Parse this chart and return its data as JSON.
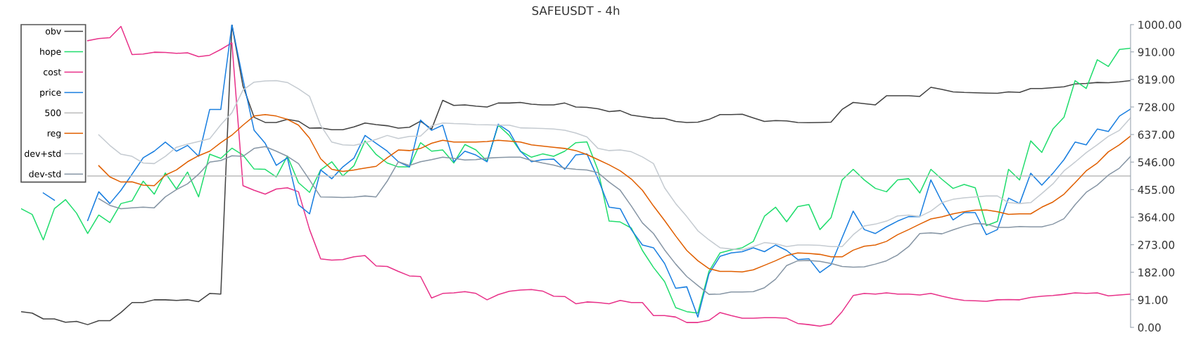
{
  "chart_data": {
    "type": "line",
    "title": "SAFEUSDT - 4h",
    "categories": [
      null,
      null,
      null,
      null,
      null,
      null,
      null,
      null,
      null,
      null,
      null,
      null,
      null,
      null,
      null,
      null,
      null,
      null,
      null,
      null,
      null,
      null,
      null,
      null,
      null,
      null,
      null,
      null,
      null,
      null,
      null,
      null,
      null,
      null,
      null,
      null,
      null,
      null,
      null,
      null,
      null,
      null,
      null,
      null,
      null,
      null,
      null,
      null,
      null,
      null,
      null,
      null,
      null,
      null,
      null,
      null,
      null,
      null,
      null,
      null,
      null,
      null,
      null,
      null,
      null,
      null,
      null,
      null,
      null,
      null,
      null,
      null,
      null,
      null,
      null,
      null,
      null,
      null,
      null,
      null,
      null,
      null,
      null,
      null,
      null,
      null,
      null,
      null,
      null,
      null,
      null,
      null,
      null,
      null,
      null,
      null,
      null,
      null,
      null,
      null,
      null
    ],
    "series": [
      {
        "name": "obv",
        "color": "#444444",
        "values": [
          52,
          47,
          28,
          28,
          17,
          20,
          9,
          22,
          22,
          49,
          82,
          82,
          91,
          91,
          89,
          91,
          85,
          112,
          110,
          1000,
          797,
          694,
          677,
          677,
          687,
          681,
          658,
          659,
          653,
          653,
          662,
          675,
          670,
          666,
          658,
          661,
          681,
          655,
          750,
          733,
          735,
          731,
          728,
          741,
          741,
          743,
          737,
          735,
          735,
          741,
          728,
          727,
          722,
          713,
          716,
          701,
          696,
          691,
          690,
          680,
          677,
          678,
          687,
          703,
          703,
          704,
          692,
          680,
          683,
          682,
          677,
          676,
          677,
          678,
          720,
          743,
          739,
          735,
          765,
          765,
          765,
          763,
          793,
          786,
          778,
          776,
          775,
          774,
          773,
          778,
          776,
          789,
          789,
          792,
          795,
          804,
          806,
          809,
          808,
          811,
          815
        ]
      },
      {
        "name": "hope",
        "color": "#22dd6e",
        "values": [
          392,
          373,
          289,
          392,
          422,
          377,
          310,
          371,
          346,
          409,
          418,
          483,
          440,
          510,
          457,
          513,
          431,
          572,
          558,
          592,
          569,
          523,
          522,
          497,
          566,
          478,
          446,
          520,
          547,
          500,
          534,
          616,
          571,
          543,
          530,
          530,
          610,
          582,
          586,
          543,
          604,
          586,
          549,
          668,
          634,
          582,
          562,
          573,
          565,
          582,
          610,
          613,
          519,
          351,
          348,
          328,
          254,
          198,
          151,
          65,
          52,
          47,
          185,
          246,
          256,
          263,
          284,
          367,
          397,
          349,
          399,
          406,
          323,
          362,
          487,
          522,
          487,
          459,
          448,
          487,
          491,
          444,
          522,
          489,
          459,
          472,
          461,
          336,
          350,
          522,
          487,
          616,
          578,
          655,
          694,
          815,
          789,
          884,
          862,
          918,
          922
        ]
      },
      {
        "name": "cost",
        "color": "#e8338a",
        "values": [
          null,
          null,
          null,
          null,
          null,
          null,
          947,
          954,
          957,
          994,
          901,
          903,
          909,
          908,
          905,
          907,
          894,
          899,
          918,
          940,
          468,
          453,
          440,
          457,
          461,
          448,
          323,
          226,
          222,
          224,
          233,
          237,
          203,
          201,
          185,
          170,
          168,
          97,
          112,
          114,
          118,
          112,
          91,
          108,
          119,
          123,
          125,
          120,
          103,
          102,
          78,
          84,
          82,
          78,
          89,
          82,
          82,
          39,
          39,
          34,
          16,
          16,
          23,
          49,
          39,
          30,
          30,
          32,
          32,
          30,
          13,
          9,
          4,
          11,
          52,
          105,
          112,
          110,
          114,
          110,
          110,
          107,
          112,
          103,
          95,
          89,
          88,
          86,
          91,
          92,
          91,
          99,
          103,
          105,
          109,
          114,
          112,
          114,
          104,
          107,
          110
        ]
      },
      {
        "name": "price",
        "color": "#1a7fe0",
        "values": [
          null,
          null,
          444,
          420,
          null,
          null,
          353,
          448,
          409,
          453,
          506,
          560,
          582,
          612,
          582,
          601,
          565,
          720,
          720,
          1000,
          819,
          651,
          608,
          535,
          560,
          405,
          375,
          520,
          491,
          530,
          559,
          634,
          608,
          582,
          547,
          530,
          685,
          651,
          668,
          547,
          582,
          569,
          547,
          671,
          647,
          582,
          547,
          554,
          556,
          522,
          570,
          573,
          491,
          397,
          392,
          323,
          272,
          263,
          211,
          129,
          134,
          34,
          177,
          235,
          246,
          250,
          263,
          250,
          272,
          254,
          224,
          227,
          181,
          207,
          296,
          384,
          323,
          310,
          332,
          351,
          366,
          366,
          487,
          414,
          355,
          379,
          379,
          306,
          323,
          427,
          409,
          509,
          470,
          509,
          554,
          612,
          603,
          655,
          647,
          698,
          721
        ]
      },
      {
        "name": "500",
        "color": "#bbbbbb",
        "values": [
          null,
          null,
          null,
          null,
          null,
          null,
          500,
          500,
          500,
          500,
          500,
          500,
          500,
          500,
          500,
          500,
          500,
          500,
          500,
          500,
          500,
          500,
          500,
          500,
          500,
          500,
          500,
          500,
          500,
          500,
          500,
          500,
          500,
          500,
          500,
          500,
          500,
          500,
          500,
          500,
          500,
          500,
          500,
          500,
          500,
          500,
          500,
          500,
          500,
          500,
          500,
          500,
          500,
          500,
          500,
          500,
          500,
          500,
          500,
          500,
          500,
          500,
          500,
          500,
          500,
          500,
          500,
          500,
          500,
          500,
          500,
          500,
          500,
          500,
          500,
          500,
          500,
          500,
          500,
          500,
          500,
          500,
          500,
          500,
          500,
          500,
          500,
          500,
          500,
          500,
          500,
          500,
          500,
          500,
          500,
          500,
          500,
          500,
          500,
          500,
          500
        ]
      },
      {
        "name": "reg",
        "color": "#e05f00",
        "values": [
          null,
          null,
          null,
          null,
          null,
          null,
          null,
          534,
          497,
          480,
          481,
          470,
          468,
          503,
          520,
          547,
          567,
          582,
          610,
          635,
          668,
          698,
          703,
          698,
          687,
          668,
          625,
          557,
          522,
          515,
          520,
          526,
          532,
          560,
          586,
          584,
          591,
          608,
          618,
          612,
          612,
          612,
          614,
          618,
          615,
          612,
          603,
          599,
          595,
          591,
          584,
          571,
          554,
          537,
          517,
          490,
          453,
          401,
          353,
          302,
          254,
          220,
          194,
          185,
          185,
          183,
          190,
          205,
          220,
          237,
          246,
          244,
          241,
          233,
          233,
          255,
          268,
          272,
          284,
          306,
          323,
          341,
          358,
          365,
          375,
          382,
          387,
          388,
          382,
          373,
          375,
          375,
          397,
          414,
          440,
          478,
          517,
          543,
          580,
          603,
          632
        ]
      },
      {
        "name": "dev+std",
        "color": "#c5cbd1",
        "values": [
          null,
          null,
          null,
          null,
          null,
          null,
          null,
          636,
          601,
          572,
          565,
          543,
          541,
          565,
          595,
          605,
          614,
          623,
          669,
          709,
          784,
          810,
          814,
          815,
          809,
          788,
          763,
          667,
          612,
          603,
          601,
          610,
          621,
          634,
          624,
          631,
          632,
          666,
          675,
          673,
          672,
          670,
          669,
          668,
          668,
          659,
          658,
          657,
          655,
          651,
          642,
          629,
          591,
          584,
          586,
          580,
          563,
          541,
          461,
          409,
          366,
          319,
          289,
          263,
          259,
          256,
          267,
          280,
          276,
          267,
          272,
          272,
          271,
          267,
          267,
          306,
          335,
          341,
          351,
          368,
          371,
          366,
          384,
          412,
          423,
          428,
          431,
          434,
          434,
          412,
          409,
          412,
          442,
          474,
          517,
          546,
          577,
          603,
          631,
          651,
          692
        ]
      },
      {
        "name": "dev-std",
        "color": "#8796a5",
        "values": [
          null,
          null,
          null,
          null,
          null,
          null,
          null,
          425,
          403,
          392,
          395,
          397,
          395,
          431,
          455,
          474,
          506,
          546,
          551,
          567,
          565,
          591,
          597,
          582,
          565,
          541,
          487,
          431,
          430,
          429,
          430,
          434,
          431,
          483,
          547,
          535,
          547,
          554,
          562,
          558,
          553,
          554,
          559,
          561,
          562,
          562,
          551,
          543,
          536,
          526,
          522,
          520,
          511,
          480,
          453,
          401,
          345,
          310,
          256,
          209,
          168,
          138,
          109,
          110,
          117,
          117,
          118,
          131,
          159,
          204,
          220,
          221,
          218,
          211,
          201,
          199,
          200,
          209,
          220,
          239,
          267,
          310,
          312,
          309,
          322,
          334,
          343,
          341,
          330,
          330,
          333,
          332,
          332,
          341,
          359,
          405,
          446,
          470,
          503,
          526,
          565
        ]
      }
    ],
    "ylim": [
      0,
      1000
    ],
    "yticks": [
      {
        "value": 0,
        "label": "0.00"
      },
      {
        "value": 91,
        "label": "91.00"
      },
      {
        "value": 182,
        "label": "182.00"
      },
      {
        "value": 273,
        "label": "273.00"
      },
      {
        "value": 364,
        "label": "364.00"
      },
      {
        "value": 455,
        "label": "455.00"
      },
      {
        "value": 546,
        "label": "546.00"
      },
      {
        "value": 637,
        "label": "637.00"
      },
      {
        "value": 728,
        "label": "728.00"
      },
      {
        "value": 819,
        "label": "819.00"
      },
      {
        "value": 910,
        "label": "910.00"
      },
      {
        "value": 1000,
        "label": "1000.00"
      }
    ],
    "tick_labels": "y",
    "grid": false,
    "legend": "top left"
  }
}
